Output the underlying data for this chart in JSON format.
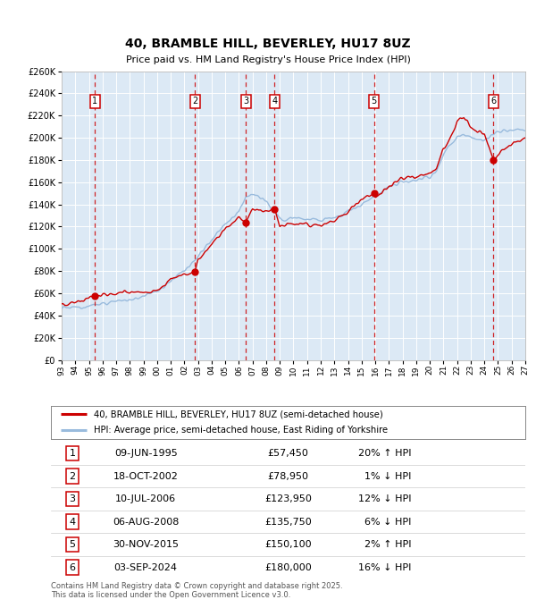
{
  "title": "40, BRAMBLE HILL, BEVERLEY, HU17 8UZ",
  "subtitle": "Price paid vs. HM Land Registry's House Price Index (HPI)",
  "plot_bg_color": "#dce9f5",
  "grid_color": "#ffffff",
  "transactions": [
    {
      "num": 1,
      "date_label": "09-JUN-1995",
      "date_x": 1995.44,
      "price": 57450,
      "hpi_pct": "20% ↑ HPI"
    },
    {
      "num": 2,
      "date_label": "18-OCT-2002",
      "date_x": 2002.79,
      "price": 78950,
      "hpi_pct": "1% ↓ HPI"
    },
    {
      "num": 3,
      "date_label": "10-JUL-2006",
      "date_x": 2006.52,
      "price": 123950,
      "hpi_pct": "12% ↓ HPI"
    },
    {
      "num": 4,
      "date_label": "06-AUG-2008",
      "date_x": 2008.6,
      "price": 135750,
      "hpi_pct": "6% ↓ HPI"
    },
    {
      "num": 5,
      "date_label": "30-NOV-2015",
      "date_x": 2015.91,
      "price": 150100,
      "hpi_pct": "2% ↑ HPI"
    },
    {
      "num": 6,
      "date_label": "03-SEP-2024",
      "date_x": 2024.67,
      "price": 180000,
      "hpi_pct": "16% ↓ HPI"
    }
  ],
  "xmin": 1993.0,
  "xmax": 2027.0,
  "ymin": 0,
  "ymax": 260000,
  "yticks": [
    0,
    20000,
    40000,
    60000,
    80000,
    100000,
    120000,
    140000,
    160000,
    180000,
    200000,
    220000,
    240000,
    260000
  ],
  "xtick_years": [
    1993,
    1994,
    1995,
    1996,
    1997,
    1998,
    1999,
    2000,
    2001,
    2002,
    2003,
    2004,
    2005,
    2006,
    2007,
    2008,
    2009,
    2010,
    2011,
    2012,
    2013,
    2014,
    2015,
    2016,
    2017,
    2018,
    2019,
    2020,
    2021,
    2022,
    2023,
    2024,
    2025,
    2026,
    2027
  ],
  "legend_entries": [
    "40, BRAMBLE HILL, BEVERLEY, HU17 8UZ (semi-detached house)",
    "HPI: Average price, semi-detached house, East Riding of Yorkshire"
  ],
  "footer_text": "Contains HM Land Registry data © Crown copyright and database right 2025.\nThis data is licensed under the Open Government Licence v3.0.",
  "price_line_color": "#cc0000",
  "hpi_line_color": "#99bbdd",
  "dashed_line_color": "#cc0000",
  "marker_color": "#cc0000",
  "box_color": "#cc0000",
  "hpi_key_years": [
    1993,
    1994,
    1995,
    1996,
    1997,
    1998,
    1999,
    2000,
    2001,
    2002,
    2003,
    2004,
    2005,
    2006,
    2006.5,
    2007,
    2007.5,
    2008,
    2008.5,
    2009,
    2009.5,
    2010,
    2010.5,
    2011,
    2012,
    2013,
    2014,
    2015,
    2016,
    2017,
    2018,
    2019,
    2020,
    2020.5,
    2021,
    2021.5,
    2022,
    2022.5,
    2023,
    2023.5,
    2024,
    2024.5,
    2025,
    2026,
    2027
  ],
  "hpi_key_vals": [
    47000,
    47500,
    48500,
    50000,
    52000,
    54000,
    57000,
    62000,
    71000,
    80000,
    94000,
    108000,
    122000,
    134000,
    148000,
    148000,
    147000,
    143000,
    135000,
    127000,
    126000,
    128000,
    127000,
    126000,
    126000,
    128000,
    133000,
    140000,
    148000,
    156000,
    160000,
    162000,
    165000,
    170000,
    185000,
    193000,
    200000,
    203000,
    200000,
    198000,
    198000,
    202000,
    205000,
    207000,
    208000
  ],
  "price_key_years": [
    1993,
    1994,
    1995.0,
    1995.44,
    1996,
    1997,
    1998,
    1999,
    2000,
    2001,
    2002.0,
    2002.79,
    2003,
    2004,
    2005,
    2006.0,
    2006.52,
    2007.0,
    2007.3,
    2008.0,
    2008.6,
    2009.0,
    2009.5,
    2010,
    2011,
    2012,
    2013,
    2014,
    2015.0,
    2015.91,
    2016,
    2016.5,
    2017,
    2017.5,
    2018,
    2018.5,
    2019,
    2019.5,
    2020,
    2020.5,
    2021,
    2021.5,
    2022,
    2022.5,
    2023,
    2023.5,
    2024.0,
    2024.67,
    2025,
    2026,
    2027
  ],
  "price_key_vals": [
    49000,
    52000,
    56000,
    57450,
    59000,
    60000,
    60500,
    61000,
    62000,
    72000,
    77000,
    78950,
    90000,
    104000,
    117000,
    128000,
    123950,
    136000,
    135750,
    134000,
    135750,
    120000,
    121000,
    122000,
    122000,
    122000,
    126000,
    133000,
    145000,
    150100,
    148000,
    151000,
    156000,
    160000,
    163000,
    165000,
    165000,
    166000,
    168000,
    173000,
    190000,
    200000,
    215000,
    218000,
    210000,
    205000,
    205000,
    180000,
    185000,
    195000,
    200000
  ]
}
